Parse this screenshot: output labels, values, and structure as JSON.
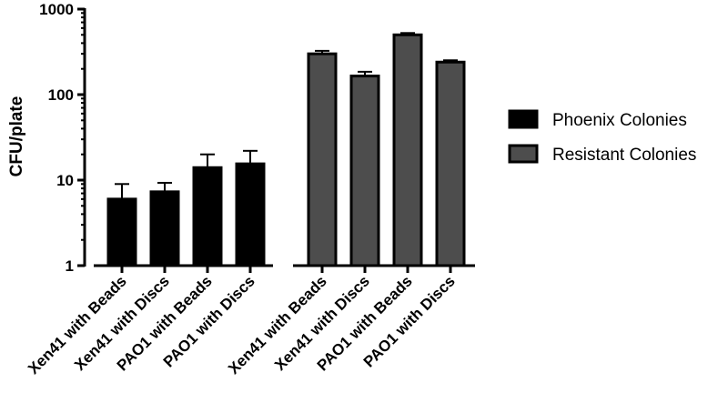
{
  "chart_data": {
    "type": "bar",
    "title": "",
    "xlabel": "",
    "ylabel": "CFU/plate",
    "yscale": "log",
    "ylim": [
      1,
      1000
    ],
    "yticks": [
      {
        "value": 1,
        "label": "1"
      },
      {
        "value": 10,
        "label": "10"
      },
      {
        "value": 100,
        "label": "100"
      },
      {
        "value": 1000,
        "label": "1000"
      }
    ],
    "grid": false,
    "legend_position": "right",
    "series": [
      {
        "name": "Phoenix Colonies",
        "color": "#000000",
        "categories": [
          "Xen41 with Beads",
          "Xen41 with Discs",
          "PAO1 with Beads",
          "PAO1 with Discs"
        ],
        "values": [
          6,
          7.3,
          14,
          15.5
        ],
        "errors": [
          3,
          2,
          6,
          6.5
        ]
      },
      {
        "name": "Resistant Colonies",
        "color": "#4d4d4d",
        "categories": [
          "Xen41 with Beads",
          "Xen41 with Discs",
          "PAO1 with Beads",
          "PAO1 with Discs"
        ],
        "values": [
          300,
          165,
          500,
          240
        ],
        "errors": [
          25,
          20,
          25,
          12
        ]
      }
    ]
  }
}
